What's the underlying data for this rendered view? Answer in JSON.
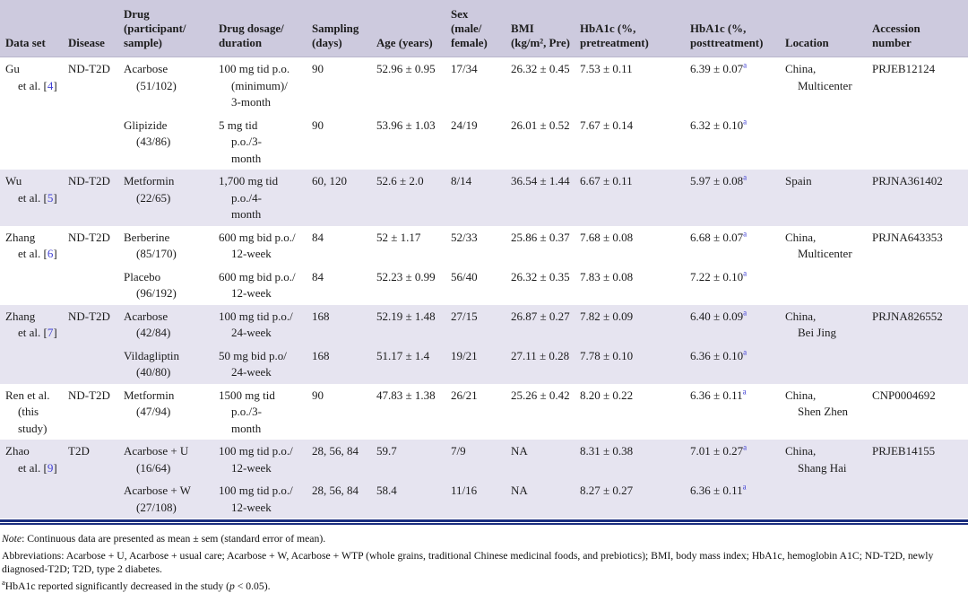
{
  "colors": {
    "header_bg": "#cdcade",
    "row_shade": "#e6e4f0",
    "rule_navy": "#1b2e7f",
    "ref_blue": "#3f3fd3"
  },
  "table": {
    "headers": [
      "Data set",
      "Disease",
      "Drug\n(participant/\nsample)",
      "Drug dosage/\nduration",
      "Sampling\n(days)",
      "Age (years)",
      "Sex\n(male/\nfemale)",
      "BMI\n(kg/m², Pre)",
      "HbA1c (%,\npretreatment)",
      "HbA1c (%,\nposttreatment)",
      "Location",
      "Accession\nnumber"
    ],
    "groups": [
      {
        "dataset": "Gu\net al. [4]",
        "disease": "ND-T2D",
        "location": "China,\nMulticenter",
        "accession": "PRJEB12124",
        "shaded": false,
        "drugs": [
          {
            "drug": "Acarbose\n(51/102)",
            "dosage": "100 mg tid p.o.\n(minimum)/\n3-month",
            "sampling": "90",
            "age": "52.96 ± 0.95",
            "sex": "17/34",
            "bmi": "26.32 ± 0.45",
            "hba1c_pre": "7.53 ± 0.11",
            "hba1c_post": "6.39 ± 0.07",
            "post_sup": "a"
          },
          {
            "drug": "Glipizide\n(43/86)",
            "dosage": "5 mg tid\np.o./3-\nmonth",
            "sampling": "90",
            "age": "53.96 ± 1.03",
            "sex": "24/19",
            "bmi": "26.01 ± 0.52",
            "hba1c_pre": "7.67 ± 0.14",
            "hba1c_post": "6.32 ± 0.10",
            "post_sup": "a"
          }
        ]
      },
      {
        "dataset": "Wu\net al. [5]",
        "disease": "ND-T2D",
        "location": "Spain",
        "accession": "PRJNA361402",
        "shaded": true,
        "drugs": [
          {
            "drug": "Metformin\n(22/65)",
            "dosage": "1,700 mg tid\np.o./4-\nmonth",
            "sampling": "60, 120",
            "age": "52.6 ± 2.0",
            "sex": "8/14",
            "bmi": "36.54 ± 1.44",
            "hba1c_pre": "6.67 ± 0.11",
            "hba1c_post": "5.97 ± 0.08",
            "post_sup": "a"
          }
        ]
      },
      {
        "dataset": "Zhang\net al. [6]",
        "disease": "ND-T2D",
        "location": "China,\nMulticenter",
        "accession": "PRJNA643353",
        "shaded": false,
        "drugs": [
          {
            "drug": "Berberine\n(85/170)",
            "dosage": "600 mg bid p.o./\n12-week",
            "sampling": "84",
            "age": "52 ± 1.17",
            "sex": "52/33",
            "bmi": "25.86 ± 0.37",
            "hba1c_pre": "7.68 ± 0.08",
            "hba1c_post": "6.68 ± 0.07",
            "post_sup": "a"
          },
          {
            "drug": "Placebo\n(96/192)",
            "dosage": "600 mg bid p.o./\n12-week",
            "sampling": "84",
            "age": "52.23 ± 0.99",
            "sex": "56/40",
            "bmi": "26.32 ± 0.35",
            "hba1c_pre": "7.83 ± 0.08",
            "hba1c_post": "7.22 ± 0.10",
            "post_sup": "a"
          }
        ]
      },
      {
        "dataset": "Zhang\net al. [7]",
        "disease": "ND-T2D",
        "location": "China,\nBei Jing",
        "accession": "PRJNA826552",
        "shaded": true,
        "drugs": [
          {
            "drug": "Acarbose\n(42/84)",
            "dosage": "100 mg tid p.o./\n24-week",
            "sampling": "168",
            "age": "52.19 ± 1.48",
            "sex": "27/15",
            "bmi": "26.87 ± 0.27",
            "hba1c_pre": "7.82 ± 0.09",
            "hba1c_post": "6.40 ± 0.09",
            "post_sup": "a"
          },
          {
            "drug": "Vildagliptin\n(40/80)",
            "dosage": "50 mg bid p.o/\n24-week",
            "sampling": "168",
            "age": "51.17 ± 1.4",
            "sex": "19/21",
            "bmi": "27.11 ± 0.28",
            "hba1c_pre": "7.78 ± 0.10",
            "hba1c_post": "6.36 ± 0.10",
            "post_sup": "a"
          }
        ]
      },
      {
        "dataset": "Ren et al.\n(this\nstudy)",
        "disease": "ND-T2D",
        "location": "China,\nShen Zhen",
        "accession": "CNP0004692",
        "shaded": false,
        "drugs": [
          {
            "drug": "Metformin\n(47/94)",
            "dosage": "1500 mg tid\np.o./3-\nmonth",
            "sampling": "90",
            "age": "47.83 ± 1.38",
            "sex": "26/21",
            "bmi": "25.26 ± 0.42",
            "hba1c_pre": "8.20 ± 0.22",
            "hba1c_post": "6.36 ± 0.11",
            "post_sup": "a"
          }
        ]
      },
      {
        "dataset": "Zhao\net al. [9]",
        "disease": "T2D",
        "location": "China,\nShang Hai",
        "accession": "PRJEB14155",
        "shaded": true,
        "drugs": [
          {
            "drug": "Acarbose + U\n(16/64)",
            "dosage": "100 mg tid p.o./\n12-week",
            "sampling": "28, 56, 84",
            "age": "59.7",
            "sex": "7/9",
            "bmi": "NA",
            "hba1c_pre": "8.31 ± 0.38",
            "hba1c_post": "7.01 ± 0.27",
            "post_sup": "a"
          },
          {
            "drug": "Acarbose + W\n(27/108)",
            "dosage": "100 mg tid p.o./\n12-week",
            "sampling": "28, 56, 84",
            "age": "58.4",
            "sex": "11/16",
            "bmi": "NA",
            "hba1c_pre": "8.27 ± 0.27",
            "hba1c_post": "6.36 ± 0.11",
            "post_sup": "a"
          }
        ]
      }
    ]
  },
  "footnotes": {
    "note_label": "Note",
    "note_text": ": Continuous data are presented as mean ± sem (standard error of mean).",
    "abbreviations": "Abbreviations: Acarbose + U, Acarbose + usual care; Acarbose + W, Acarbose + WTP (whole grains, traditional Chinese medicinal foods, and prebiotics); BMI, body mass index; HbA1c, hemoglobin A1C; ND-T2D, newly diagnosed-T2D; T2D, type 2 diabetes.",
    "footnote_a_sup": "a",
    "footnote_a_pre": "HbA1c reported significantly decreased in the study (",
    "footnote_a_p": "p",
    "footnote_a_post": " < 0.05)."
  }
}
